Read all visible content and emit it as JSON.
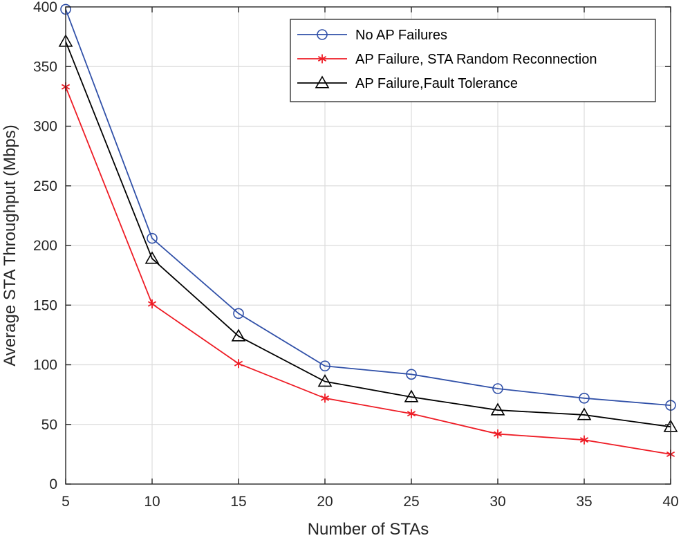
{
  "chart_data": {
    "type": "line",
    "title": "",
    "xlabel": "Number of STAs",
    "ylabel": "Average STA Throughput (Mbps)",
    "x": [
      5,
      10,
      15,
      20,
      25,
      30,
      35,
      40
    ],
    "xlim": [
      5,
      40
    ],
    "ylim": [
      0,
      400
    ],
    "xticks": [
      5,
      10,
      15,
      20,
      25,
      30,
      35,
      40
    ],
    "yticks": [
      0,
      50,
      100,
      150,
      200,
      250,
      300,
      350,
      400
    ],
    "grid": true,
    "legend_position": "top-right",
    "series": [
      {
        "name": "No AP Failures",
        "color": "#3050a8",
        "marker": "circle",
        "values": [
          398,
          206,
          143,
          99,
          92,
          80,
          72,
          66
        ]
      },
      {
        "name": "AP Failure, STA Random Reconnection",
        "color": "#ee1c25",
        "marker": "asterisk",
        "values": [
          333,
          151,
          101,
          72,
          59,
          42,
          37,
          25
        ]
      },
      {
        "name": "AP Failure,Fault Tolerance",
        "color": "#000000",
        "marker": "triangle",
        "values": [
          371,
          189,
          124,
          86,
          73,
          62,
          58,
          48
        ]
      }
    ]
  }
}
